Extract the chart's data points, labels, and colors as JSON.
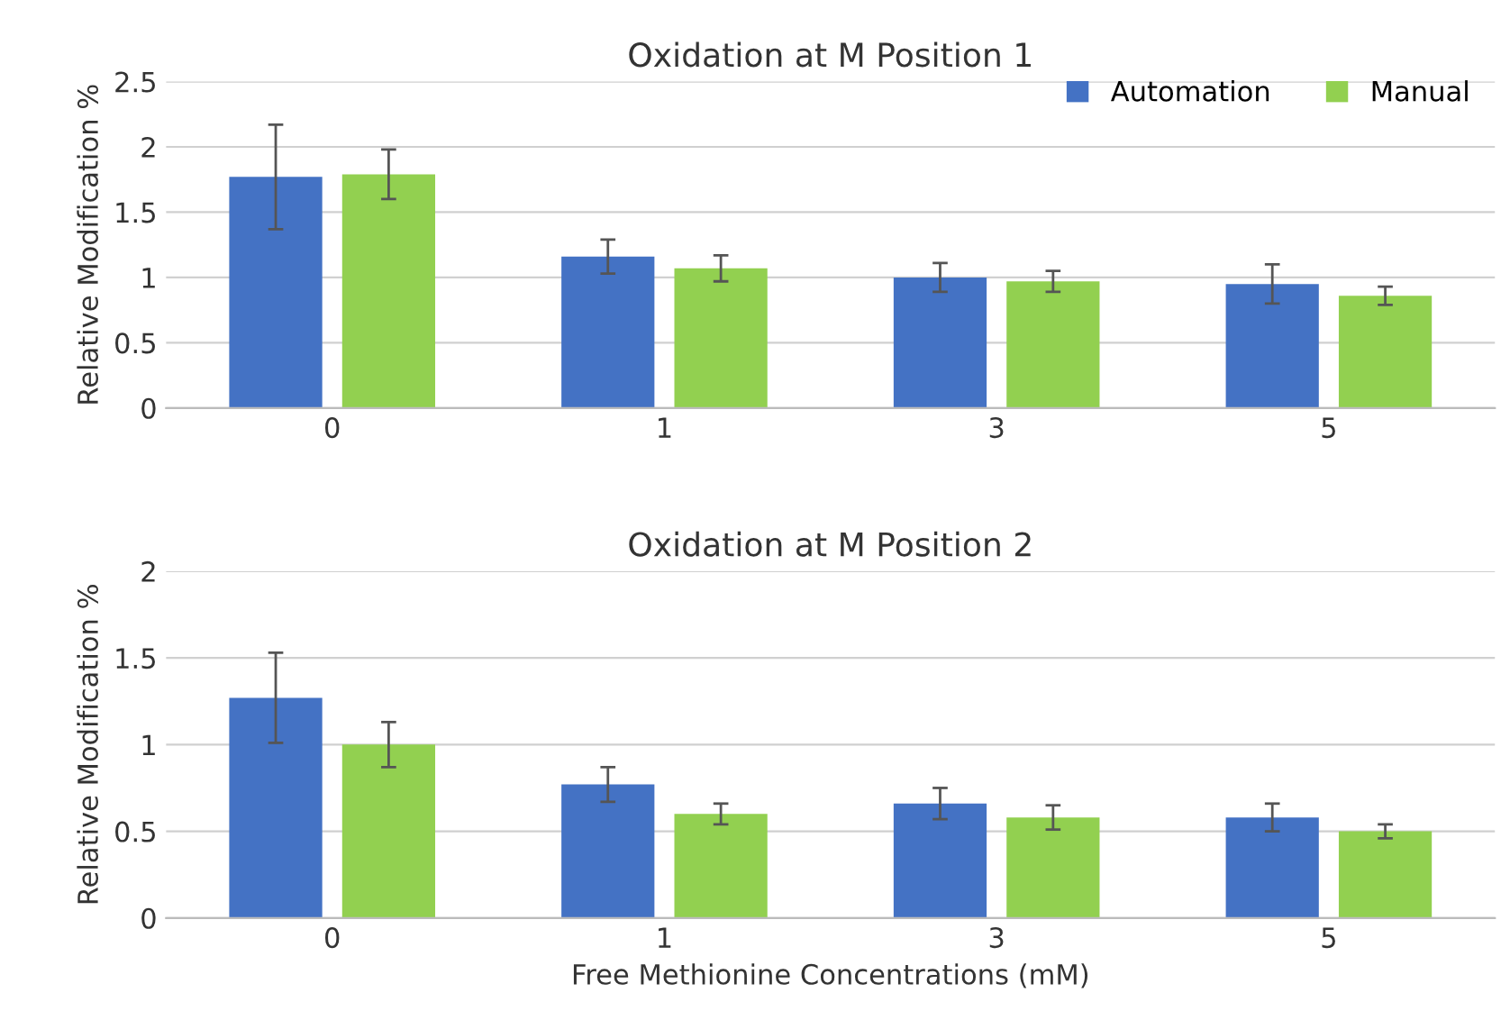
{
  "chart_data": [
    {
      "type": "bar",
      "title": "Oxidation at M Position 1",
      "ylabel": "Relative Modification %",
      "categories": [
        "0",
        "1",
        "3",
        "5"
      ],
      "ylim": [
        0,
        2.5
      ],
      "yticks": [
        0,
        0.5,
        1,
        1.5,
        2,
        2.5
      ],
      "grid": "y",
      "legend": "top right",
      "series": [
        {
          "name": "Automation",
          "color": "#4472c4",
          "values": [
            1.77,
            1.16,
            1.0,
            0.95
          ],
          "errors": [
            0.4,
            0.13,
            0.11,
            0.15
          ]
        },
        {
          "name": "Manual",
          "color": "#92d050",
          "values": [
            1.79,
            1.07,
            0.97,
            0.86
          ],
          "errors": [
            0.19,
            0.1,
            0.08,
            0.07
          ]
        }
      ]
    },
    {
      "type": "bar",
      "title": "Oxidation at M Position 2",
      "ylabel": "Relative Modification %",
      "xlabel": "Free Methionine Concentrations (mM)",
      "categories": [
        "0",
        "1",
        "3",
        "5"
      ],
      "ylim": [
        0,
        2
      ],
      "yticks": [
        0,
        0.5,
        1,
        1.5,
        2
      ],
      "grid": "y",
      "series": [
        {
          "color": "#4472c4",
          "values": [
            1.27,
            0.77,
            0.66,
            0.58
          ],
          "errors": [
            0.26,
            0.1,
            0.09,
            0.08
          ]
        },
        {
          "color": "#92d050",
          "values": [
            1.0,
            0.6,
            0.58,
            0.5
          ],
          "errors": [
            0.13,
            0.06,
            0.07,
            0.04
          ]
        }
      ]
    }
  ]
}
